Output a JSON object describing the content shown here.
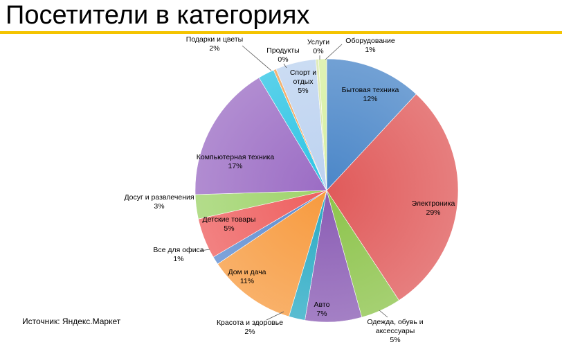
{
  "title": "Посетители в категориях",
  "source": "Источник: Яндекс.Маркет",
  "colors": {
    "accent": "#f4c400"
  },
  "chart_data": {
    "type": "pie",
    "start_angle_deg": 0,
    "direction": "clockwise",
    "slices": [
      {
        "name": "Бытовая техника",
        "name_lines": [
          "Бытовая техника"
        ],
        "value": 12,
        "label": "12%",
        "color": "#4a86c8",
        "label_pos": "inside"
      },
      {
        "name": "Электроника",
        "name_lines": [
          "Электроника"
        ],
        "value": 29,
        "label": "29%",
        "color": "#e05a5a",
        "label_pos": "inside"
      },
      {
        "name": "Одежда, обувь и аксессуары",
        "name_lines": [
          "Одежда, обувь и",
          "аксессуары"
        ],
        "value": 5,
        "label": "5%",
        "color": "#8cc34a",
        "label_pos": "outside"
      },
      {
        "name": "Авто",
        "name_lines": [
          "Авто"
        ],
        "value": 7,
        "label": "7%",
        "color": "#8a5cb4",
        "label_pos": "inside"
      },
      {
        "name": "Красота и здоровье",
        "name_lines": [
          "Красота и здоровье"
        ],
        "value": 2,
        "label": "2%",
        "color": "#2aaac4",
        "label_pos": "outside"
      },
      {
        "name": "Дом и дача",
        "name_lines": [
          "Дом и дача"
        ],
        "value": 11,
        "label": "11%",
        "color": "#f79a3e",
        "label_pos": "inside"
      },
      {
        "name": "Все для офиса",
        "name_lines": [
          "Все для офиса"
        ],
        "value": 1,
        "label": "1%",
        "color": "#5a8ad0",
        "label_pos": "outside"
      },
      {
        "name": "Детские товары",
        "name_lines": [
          "Детские товары"
        ],
        "value": 5,
        "label": "5%",
        "color": "#ee5e5e",
        "label_pos": "inside"
      },
      {
        "name": "Досуг и развлечения",
        "name_lines": [
          "Досуг и развлечения"
        ],
        "value": 3,
        "label": "3%",
        "color": "#9ed36a",
        "label_pos": "outside"
      },
      {
        "name": "Компьютерная техника",
        "name_lines": [
          "Компьютерная техника"
        ],
        "value": 17,
        "label": "17%",
        "color": "#9b6cc4",
        "label_pos": "inside"
      },
      {
        "name": "Подарки и цветы",
        "name_lines": [
          "Подарки и цветы"
        ],
        "value": 2,
        "label": "2%",
        "color": "#2cc4e4",
        "label_pos": "outside"
      },
      {
        "name": "Продукты",
        "name_lines": [
          "Продукты"
        ],
        "value": 0,
        "label": "0%",
        "color": "#f0a050",
        "label_pos": "outside"
      },
      {
        "name": "Спорт и отдых",
        "name_lines": [
          "Спорт и",
          "отдых"
        ],
        "value": 5,
        "label": "5%",
        "color": "#bcd2f0",
        "label_pos": "inside"
      },
      {
        "name": "Услуги",
        "name_lines": [
          "Услуги"
        ],
        "value": 0,
        "label": "0%",
        "color": "#d8e6a8",
        "label_pos": "outside"
      },
      {
        "name": "Оборудование",
        "name_lines": [
          "Оборудование"
        ],
        "value": 1,
        "label": "1%",
        "color": "#d6efa0",
        "label_pos": "outside"
      }
    ]
  }
}
